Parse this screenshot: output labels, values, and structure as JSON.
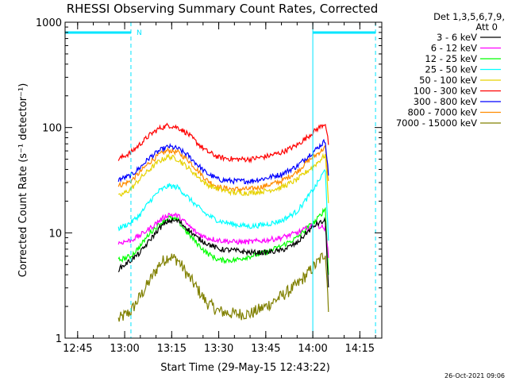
{
  "chart_data": {
    "type": "line",
    "title": "RHESSI Observing Summary Count Rates, Corrected",
    "xlabel": "Start Time (29-May-15 12:43:22)",
    "ylabel": "Corrected Count Rate (s⁻¹ detector⁻¹)",
    "ylog": true,
    "ylim": [
      1,
      1000
    ],
    "xlim": [
      "12:41",
      "14:22"
    ],
    "x_ticks": [
      "12:45",
      "13:00",
      "13:15",
      "13:30",
      "13:45",
      "14:00",
      "14:15"
    ],
    "y_ticks": [
      "1",
      "10",
      "100",
      "1000"
    ],
    "grid": false,
    "legend_header": [
      "Det 1,3,5,6,7,9,",
      "Att 0"
    ],
    "legend_position": "right",
    "timestamp": "26-Oct-2021 09:06",
    "night_marker_label": "N",
    "night_bars": [
      {
        "start": "12:41",
        "end": "13:02"
      },
      {
        "start": "14:00",
        "end": "14:20"
      }
    ],
    "vertical_lines": [
      {
        "time": "12:41",
        "style": "solid"
      },
      {
        "time": "13:02",
        "style": "dashed"
      },
      {
        "time": "14:00",
        "style": "solid"
      },
      {
        "time": "14:20",
        "style": "dashed"
      }
    ],
    "series": [
      {
        "name": "3 - 6 keV",
        "color": "#000000",
        "x": [
          "12:58",
          "13:02",
          "13:05",
          "13:08",
          "13:11",
          "13:14",
          "13:17",
          "13:20",
          "13:23",
          "13:26",
          "13:30",
          "13:35",
          "13:40",
          "13:45",
          "13:50",
          "13:55",
          "13:58",
          "14:01",
          "14:04",
          "14:05"
        ],
        "values": [
          4.5,
          5.5,
          6.5,
          8.5,
          11,
          13,
          13,
          11,
          9,
          8,
          7,
          6.8,
          6.5,
          6.5,
          6.8,
          8,
          10,
          12,
          13,
          3
        ]
      },
      {
        "name": "6 - 12 keV",
        "color": "#ff00ff",
        "x": [
          "12:58",
          "13:02",
          "13:05",
          "13:08",
          "13:11",
          "13:14",
          "13:17",
          "13:20",
          "13:23",
          "13:26",
          "13:30",
          "13:35",
          "13:40",
          "13:45",
          "13:50",
          "13:55",
          "13:58",
          "14:01",
          "14:04",
          "14:05"
        ],
        "values": [
          8,
          8.5,
          9.5,
          11,
          13,
          15,
          14.5,
          12,
          10,
          9,
          8.5,
          8.2,
          8.2,
          8.5,
          9,
          10,
          11,
          12,
          11,
          6
        ]
      },
      {
        "name": "12 - 25 keV",
        "color": "#00ff00",
        "x": [
          "12:58",
          "13:02",
          "13:05",
          "13:08",
          "13:11",
          "13:14",
          "13:17",
          "13:20",
          "13:23",
          "13:26",
          "13:30",
          "13:35",
          "13:40",
          "13:45",
          "13:50",
          "13:55",
          "13:58",
          "14:01",
          "14:04",
          "14:05"
        ],
        "values": [
          5.5,
          6,
          7.5,
          10,
          12,
          14,
          13,
          10,
          8,
          6.5,
          5.5,
          5.5,
          6,
          6.5,
          7.5,
          9,
          11,
          13,
          17,
          4
        ]
      },
      {
        "name": "25 - 50 keV",
        "color": "#00ffff",
        "x": [
          "12:58",
          "13:02",
          "13:05",
          "13:08",
          "13:11",
          "13:14",
          "13:17",
          "13:20",
          "13:23",
          "13:26",
          "13:30",
          "13:35",
          "13:40",
          "13:45",
          "13:50",
          "13:55",
          "13:58",
          "14:01",
          "14:04",
          "14:05"
        ],
        "values": [
          11,
          12.5,
          15,
          20,
          25,
          28,
          27,
          22,
          18,
          15,
          13,
          12,
          11.5,
          12,
          13,
          16,
          21,
          28,
          40,
          8
        ]
      },
      {
        "name": "50 - 100 keV",
        "color": "#e6d200",
        "x": [
          "12:58",
          "13:02",
          "13:05",
          "13:08",
          "13:11",
          "13:14",
          "13:17",
          "13:20",
          "13:23",
          "13:26",
          "13:30",
          "13:35",
          "13:40",
          "13:45",
          "13:50",
          "13:55",
          "13:58",
          "14:01",
          "14:04",
          "14:05"
        ],
        "values": [
          22,
          26,
          33,
          40,
          48,
          53,
          50,
          42,
          35,
          29,
          26,
          24,
          24,
          25,
          27,
          32,
          38,
          45,
          55,
          20
        ]
      },
      {
        "name": "100 - 300 keV",
        "color": "#ff0000",
        "x": [
          "12:58",
          "13:02",
          "13:05",
          "13:08",
          "13:11",
          "13:14",
          "13:17",
          "13:20",
          "13:23",
          "13:26",
          "13:30",
          "13:35",
          "13:40",
          "13:45",
          "13:50",
          "13:55",
          "13:58",
          "14:01",
          "14:04",
          "14:05"
        ],
        "values": [
          50,
          58,
          70,
          85,
          98,
          105,
          100,
          88,
          72,
          60,
          52,
          50,
          50,
          53,
          58,
          68,
          80,
          95,
          110,
          70
        ]
      },
      {
        "name": "300 - 800 keV",
        "color": "#0000ff",
        "x": [
          "12:58",
          "13:02",
          "13:05",
          "13:08",
          "13:11",
          "13:14",
          "13:17",
          "13:20",
          "13:23",
          "13:26",
          "13:30",
          "13:35",
          "13:40",
          "13:45",
          "13:50",
          "13:55",
          "13:58",
          "14:01",
          "14:04",
          "14:05"
        ],
        "values": [
          32,
          35,
          42,
          52,
          60,
          66,
          63,
          55,
          45,
          37,
          32,
          31,
          31,
          33,
          36,
          43,
          52,
          62,
          75,
          35
        ]
      },
      {
        "name": "800 - 7000 keV",
        "color": "#ff8c00",
        "x": [
          "12:58",
          "13:02",
          "13:05",
          "13:08",
          "13:11",
          "13:14",
          "13:17",
          "13:20",
          "13:23",
          "13:26",
          "13:30",
          "13:35",
          "13:40",
          "13:45",
          "13:50",
          "13:55",
          "13:58",
          "14:01",
          "14:04",
          "14:05"
        ],
        "values": [
          28,
          31,
          38,
          47,
          55,
          61,
          58,
          50,
          40,
          32,
          27,
          26,
          26,
          28,
          31,
          38,
          47,
          55,
          65,
          30
        ]
      },
      {
        "name": "7000 - 15000 keV",
        "color": "#808000",
        "x": [
          "12:58",
          "13:02",
          "13:05",
          "13:08",
          "13:11",
          "13:14",
          "13:17",
          "13:20",
          "13:23",
          "13:26",
          "13:30",
          "13:35",
          "13:40",
          "13:45",
          "13:50",
          "13:55",
          "13:58",
          "14:01",
          "14:04",
          "14:05"
        ],
        "values": [
          1.5,
          1.8,
          2.5,
          3.5,
          5,
          6,
          5.5,
          4,
          3,
          2.2,
          1.8,
          1.7,
          1.7,
          2,
          2.5,
          3.2,
          4,
          5,
          6.5,
          2
        ]
      }
    ]
  }
}
